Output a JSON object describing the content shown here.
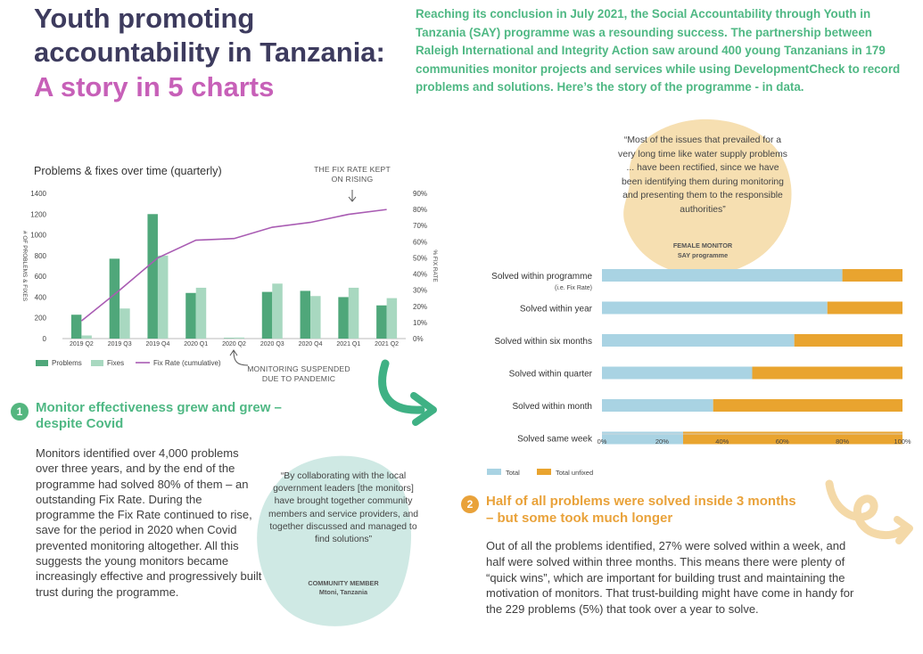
{
  "header": {
    "title_line1": "Youth promoting",
    "title_line2": "accountability in Tanzania:",
    "title_line3": "A story in 5 charts",
    "intro": "Reaching its conclusion in July 2021, the Social Accountability through Youth in Tanzania (SAY) programme was a resounding success. The partnership between Raleigh International and Integrity Action saw around 400 young Tanzanians in 179 communities monitor projects and services while using DevelopmentCheck to record problems and solutions. Here’s the story of the programme - in data."
  },
  "annotations": {
    "fix_rate_rising": "THE FIX RATE KEPT ON RISING",
    "monitoring_suspended": "MONITORING SUSPENDED DUE TO PANDEMIC"
  },
  "colors": {
    "problems": "#4fa77a",
    "fixes": "#a8d8c0",
    "fix_rate": "#a95cb3",
    "total": "#a9d3e3",
    "unfixed": "#e9a42f"
  },
  "chart_data": [
    {
      "type": "bar",
      "title": "Problems & fixes over time (quarterly)",
      "categories": [
        "2019 Q2",
        "2019 Q3",
        "2019 Q4",
        "2020 Q1",
        "2020 Q2",
        "2020 Q3",
        "2020 Q4",
        "2021 Q1",
        "2021 Q2"
      ],
      "series": [
        {
          "name": "Problems",
          "values": [
            230,
            770,
            1200,
            440,
            5,
            450,
            460,
            400,
            320
          ]
        },
        {
          "name": "Fixes",
          "values": [
            30,
            290,
            800,
            490,
            10,
            530,
            410,
            490,
            390
          ]
        },
        {
          "name": "Fix Rate (cumulative)",
          "axis": "right",
          "values": [
            11,
            30,
            50,
            61,
            62,
            69,
            72,
            77,
            80
          ]
        }
      ],
      "ylabel": "# OF PROBLEMS & FIXES",
      "ylabel_right": "% FIX RATE",
      "ylim": [
        0,
        1400
      ],
      "y_ticks": [
        0,
        200,
        400,
        600,
        800,
        1000,
        1200,
        1400
      ],
      "ylim_right": [
        0,
        90
      ],
      "y_ticks_right": [
        "0%",
        "10%",
        "20%",
        "30%",
        "40%",
        "50%",
        "60%",
        "70%",
        "80%",
        "90%"
      ],
      "legend": [
        "Problems",
        "Fixes",
        "Fix Rate (cumulative)"
      ],
      "legend_position": "bottom-left"
    },
    {
      "type": "bar",
      "orientation": "horizontal",
      "stacked": true,
      "categories": [
        "Solved within programme",
        "Solved within year",
        "Solved within six months",
        "Solved within quarter",
        "Solved within month",
        "Solved same week"
      ],
      "category_notes": [
        "(i.e. Fix Rate)",
        "",
        "",
        "",
        "",
        ""
      ],
      "series": [
        {
          "name": "Total",
          "values": [
            80,
            75,
            64,
            50,
            37,
            27
          ]
        },
        {
          "name": "Total unfixed",
          "values": [
            20,
            25,
            36,
            50,
            63,
            73
          ]
        }
      ],
      "xlim": [
        0,
        100
      ],
      "x_ticks": [
        "0%",
        "20%",
        "40%",
        "60%",
        "80%",
        "100%"
      ],
      "legend": [
        "Total",
        "Total unfixed"
      ],
      "legend_position": "bottom-left"
    }
  ],
  "section1": {
    "number": "1",
    "heading": "Monitor effectiveness grew and grew – despite Covid",
    "body": "Monitors identified over 4,000 problems over three years, and by the end of the programme had solved 80% of them – an outstanding Fix Rate. During the programme the Fix Rate continued to rise, save for the period in 2020 when Covid prevented monitoring altogether. All this suggests the young monitors became increasingly effective and progressively built trust during the programme."
  },
  "quote1": {
    "text": "“By collaborating with the local government leaders [the monitors] have brought together community members and service providers, and together discussed and managed to find solutions”",
    "name": "COMMUNITY MEMBER",
    "place": "Mtoni, Tanzania"
  },
  "quote2": {
    "text": "“Most of the issues that prevailed for a very long time like water supply problems ... have been rectified, since we have been identifying them during monitoring and presenting them to the responsible authorities”",
    "name": "FEMALE MONITOR",
    "programme": "SAY programme"
  },
  "section2": {
    "number": "2",
    "heading": "Half of all problems were solved inside 3 months – but some took much longer",
    "body": "Out of all the problems identified, 27% were solved within a week, and half were solved within three months. This means there were plenty of “quick wins”, which are important for building trust and maintaining the motivation of monitors. That trust-building might have come in handy for the 229 problems (5%) that took over a year to solve."
  }
}
